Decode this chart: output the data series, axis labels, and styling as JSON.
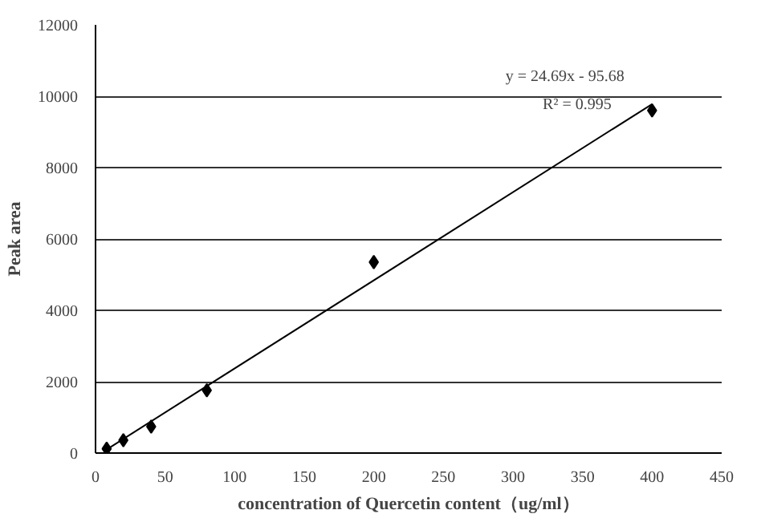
{
  "chart_data": {
    "type": "scatter",
    "xlabel": "concentration of Quercetin content（ug/ml）",
    "ylabel": "Peak area",
    "xlim": [
      0,
      450
    ],
    "xticks": [
      0,
      50,
      100,
      150,
      200,
      250,
      300,
      350,
      400,
      450
    ],
    "ylim": [
      0,
      12000
    ],
    "yticks": [
      0,
      2000,
      4000,
      6000,
      8000,
      10000,
      12000
    ],
    "grid": "y",
    "series": [
      {
        "color": "#000000",
        "marker": "diamond",
        "x": [
          8,
          20,
          40,
          80,
          200,
          400
        ],
        "values": [
          120,
          360,
          740,
          1760,
          5350,
          9600
        ]
      },
      {
        "type": "line",
        "color": "#000000",
        "x": [
          8,
          400
        ],
        "values": [
          100,
          9780
        ],
        "line_style": "solid"
      }
    ],
    "annotations": [
      "y = 24.69x - 95.68",
      "R² = 0.995"
    ]
  }
}
